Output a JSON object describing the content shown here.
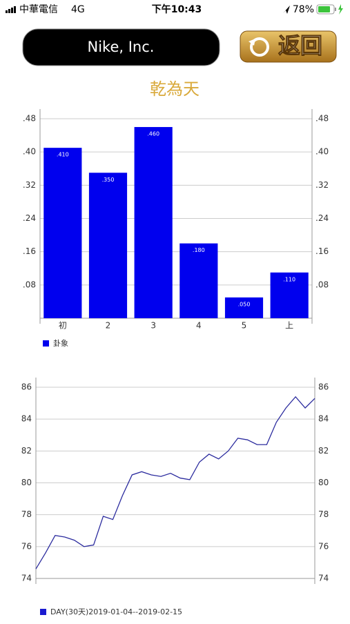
{
  "status_bar": {
    "carrier": "中華電信",
    "network": "4G",
    "time": "下午10:43",
    "battery": "78%"
  },
  "header": {
    "title": "Nike, Inc.",
    "back_button": "返回"
  },
  "chart_data": [
    {
      "type": "bar",
      "title": "乾為天",
      "categories": [
        "初",
        "2",
        "3",
        "4",
        "5",
        "上"
      ],
      "series": [
        {
          "name": "卦象",
          "color": "#0000ee",
          "values": [
            0.41,
            0.35,
            0.46,
            0.18,
            0.05,
            0.11
          ],
          "value_labels": [
            ".410",
            ".350",
            ".460",
            ".180",
            ".050",
            ".110"
          ]
        }
      ],
      "ylim": [
        0,
        0.48
      ],
      "yticks": [
        {
          "value": 0.08,
          "label": ".08"
        },
        {
          "value": 0.16,
          "label": ".16"
        },
        {
          "value": 0.24,
          "label": ".24"
        },
        {
          "value": 0.32,
          "label": ".32"
        },
        {
          "value": 0.4,
          "label": ".40"
        },
        {
          "value": 0.48,
          "label": ".48"
        }
      ],
      "grid": true
    },
    {
      "type": "line",
      "series": [
        {
          "name": "DAY(30天)2019-01-04--2019-02-15",
          "color": "#2b2b9e",
          "values": [
            74.6,
            75.6,
            76.7,
            76.6,
            76.4,
            76.0,
            76.1,
            77.9,
            77.7,
            79.2,
            80.5,
            80.7,
            80.5,
            80.4,
            80.6,
            80.3,
            80.2,
            81.3,
            81.8,
            81.5,
            82.0,
            82.8,
            82.7,
            82.4,
            82.4,
            83.8,
            84.7,
            85.4,
            84.7,
            85.3
          ]
        }
      ],
      "ylim": [
        74,
        86
      ],
      "yticks": [
        74,
        76,
        78,
        80,
        82,
        84,
        86
      ],
      "grid": true
    }
  ]
}
